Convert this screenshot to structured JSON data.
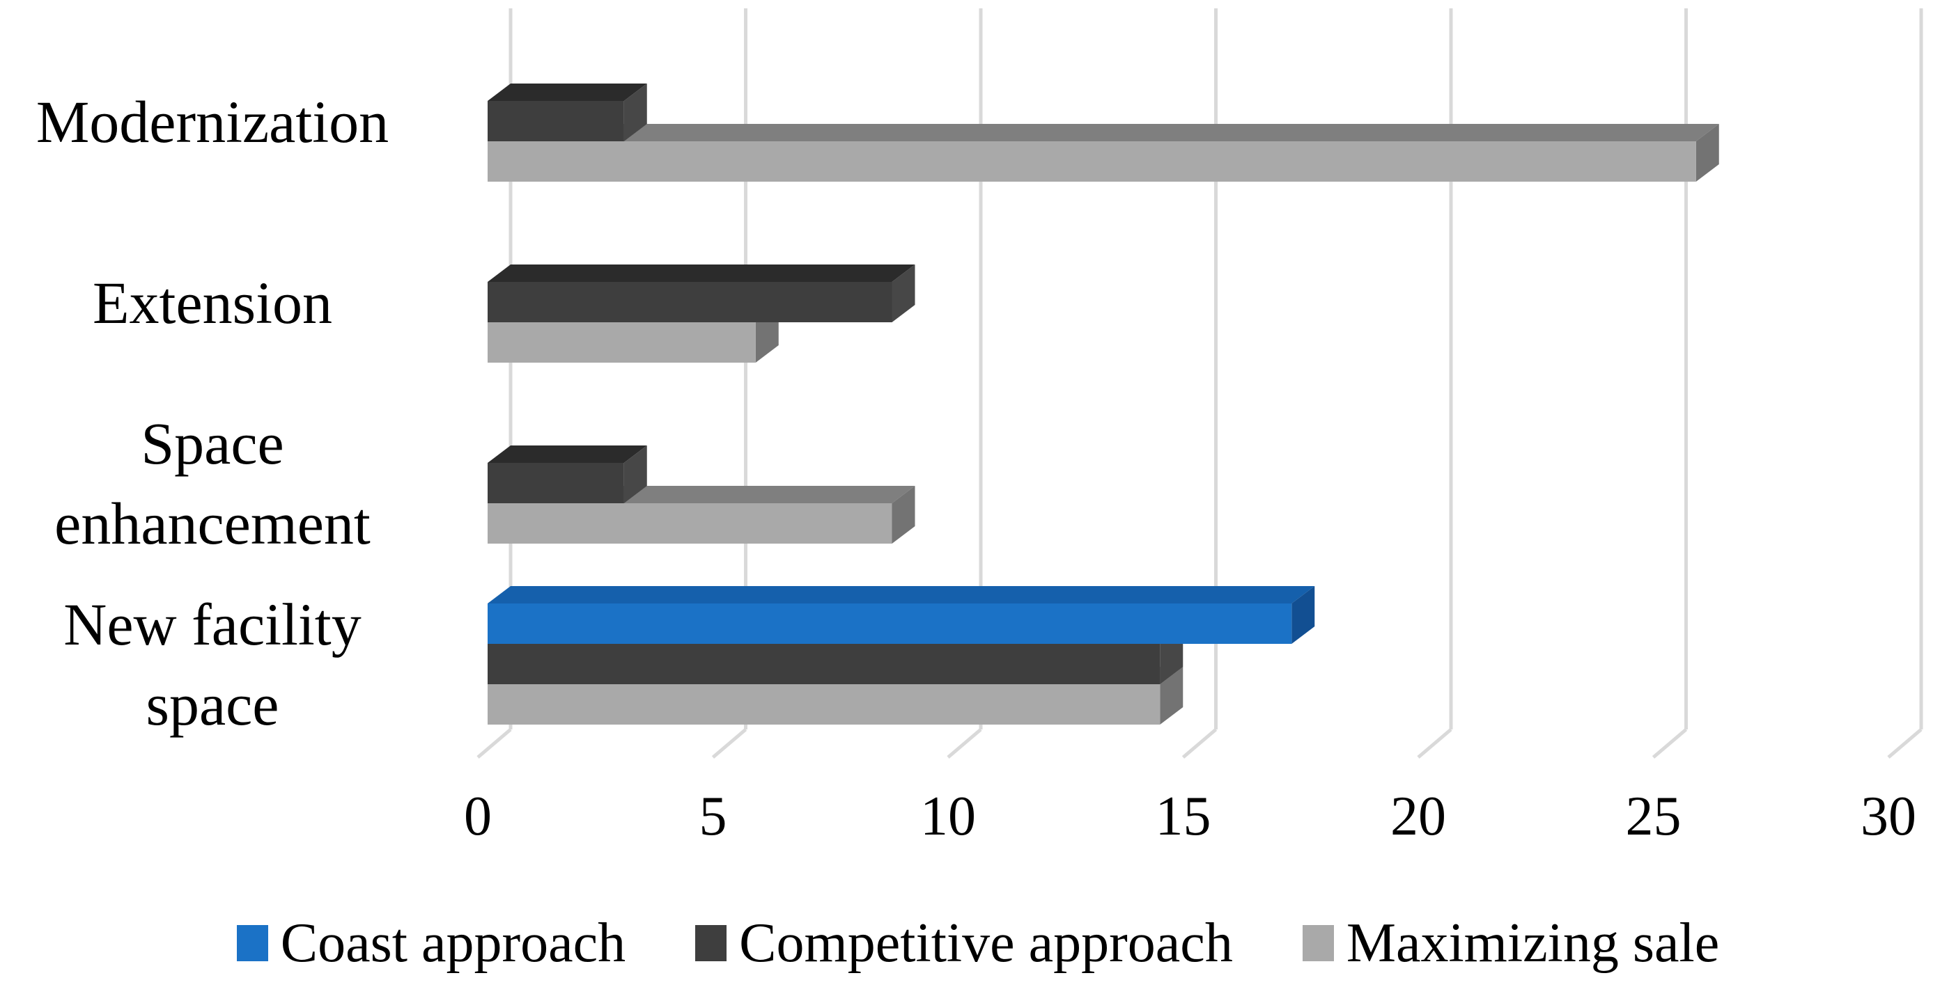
{
  "chart_data": {
    "type": "bar",
    "orientation": "horizontal",
    "style": "3d",
    "title": "",
    "xlabel": "",
    "ylabel": "",
    "categories": [
      "Modernization",
      "Extension",
      "Space enhancement",
      "New facility space"
    ],
    "series": [
      {
        "name": "Coast approach",
        "color": "#1B72C6",
        "color_top": "#1560AC",
        "color_side": "#124F92",
        "values": [
          0,
          0,
          0,
          17.1
        ]
      },
      {
        "name": "Competitive approach",
        "color": "#3E3E3E",
        "color_top": "#2B2B2B",
        "color_side": "#474747",
        "values": [
          2.9,
          8.6,
          2.9,
          14.3
        ]
      },
      {
        "name": "Maximizing sale",
        "color": "#A9A9A9",
        "color_top": "#7F7F7F",
        "color_side": "#737373",
        "values": [
          25.7,
          5.7,
          8.6,
          14.3
        ]
      }
    ],
    "x_ticks": [
      "0",
      "5",
      "10",
      "15",
      "20",
      "25",
      "30"
    ],
    "x_tick_values": [
      0,
      5,
      10,
      15,
      20,
      25,
      30
    ],
    "xlim": [
      0,
      30
    ],
    "grid": true,
    "gridline_color": "#D9D9D9",
    "background_color": "#FFFFFF",
    "text_color": "#000000",
    "legend_position": "bottom"
  }
}
